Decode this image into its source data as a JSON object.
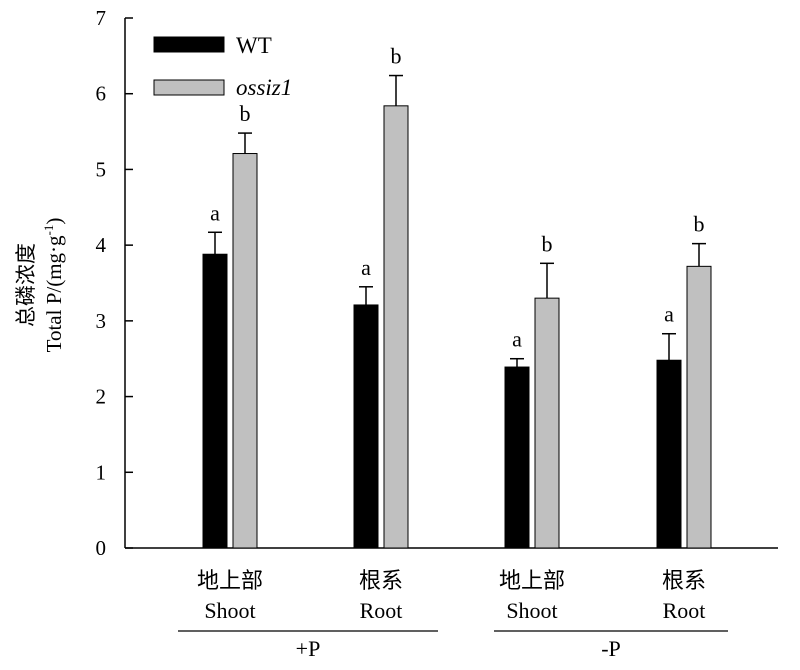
{
  "chart_data": {
    "type": "bar",
    "ylabel_cn": "总磷浓度",
    "ylabel_en": "Total P/(mg·g",
    "ylabel_sup": "-1",
    "ylabel_close": ")",
    "ylim": [
      0,
      7
    ],
    "yticks": [
      "0",
      "1",
      "2",
      "3",
      "4",
      "5",
      "6",
      "7"
    ],
    "categories": [
      {
        "cn": "地上部",
        "en": "Shoot"
      },
      {
        "cn": "根系",
        "en": "Root"
      },
      {
        "cn": "地上部",
        "en": "Shoot"
      },
      {
        "cn": "根系",
        "en": "Root"
      }
    ],
    "groups": [
      {
        "label": "+P",
        "categories": [
          0,
          1
        ]
      },
      {
        "label": "-P",
        "categories": [
          2,
          3
        ]
      }
    ],
    "series": [
      {
        "name": "WT",
        "color": "#000000",
        "values": [
          3.88,
          3.21,
          2.39,
          2.48
        ],
        "errors": [
          0.29,
          0.24,
          0.11,
          0.35
        ],
        "sig": [
          "a",
          "a",
          "a",
          "a"
        ]
      },
      {
        "name": "ossiz1",
        "color": "#c0c0c0",
        "values": [
          5.21,
          5.84,
          3.3,
          3.72
        ],
        "errors": [
          0.27,
          0.4,
          0.46,
          0.3
        ],
        "sig": [
          "b",
          "b",
          "b",
          "b"
        ]
      }
    ],
    "legend_position": "top-left",
    "grid": false
  }
}
